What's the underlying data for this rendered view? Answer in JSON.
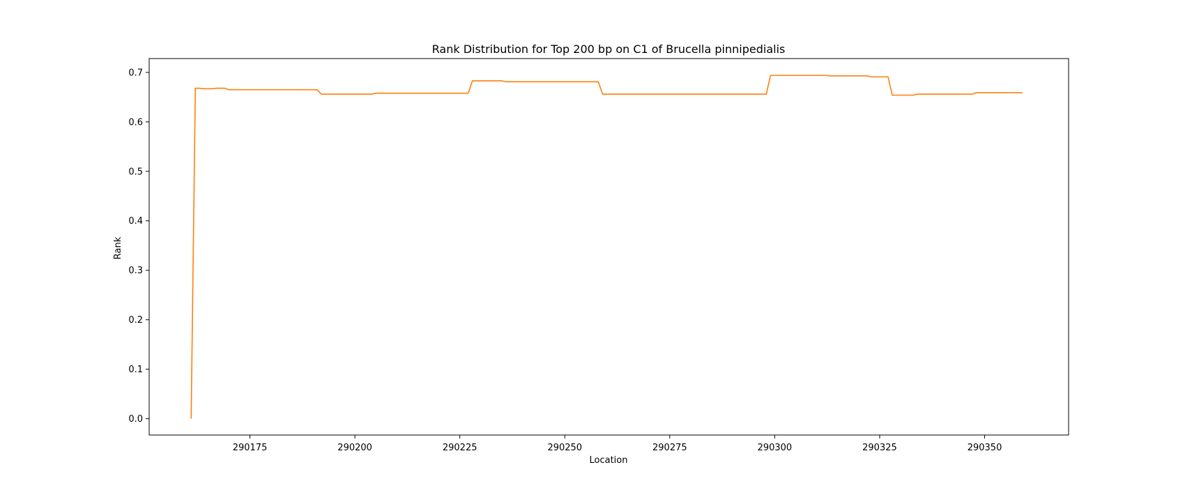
{
  "chart_data": {
    "type": "line",
    "title": "Rank Distribution for Top 200 bp on C1 of Brucella pinnipedialis",
    "xlabel": "Location",
    "ylabel": "Rank",
    "xlim": [
      290151,
      290370
    ],
    "ylim": [
      -0.033,
      0.728
    ],
    "x_ticks": [
      290175,
      290200,
      290225,
      290250,
      290275,
      290300,
      290325,
      290350
    ],
    "y_ticks": [
      0.0,
      0.1,
      0.2,
      0.3,
      0.4,
      0.5,
      0.6,
      0.7
    ],
    "y_tick_labels": [
      "0.0",
      "0.1",
      "0.2",
      "0.3",
      "0.4",
      "0.5",
      "0.6",
      "0.7"
    ],
    "grid": false,
    "series": [
      {
        "color": "#ff7f0e",
        "x": [
          290161,
          290162,
          290163,
          290164,
          290166,
          290167,
          290169,
          290170,
          290180,
          290191,
          290192,
          290200,
          290204,
          290205,
          290220,
          290227,
          290228,
          290235,
          290236,
          290245,
          290258,
          290259,
          290275,
          290298,
          290299,
          290312,
          290313,
          290322,
          290323,
          290327,
          290328,
          290333,
          290334,
          290340,
          290347,
          290348,
          290359
        ],
        "y": [
          0.0,
          0.668,
          0.668,
          0.667,
          0.667,
          0.668,
          0.668,
          0.665,
          0.665,
          0.665,
          0.656,
          0.656,
          0.656,
          0.658,
          0.658,
          0.658,
          0.683,
          0.683,
          0.681,
          0.681,
          0.681,
          0.656,
          0.656,
          0.656,
          0.694,
          0.694,
          0.693,
          0.693,
          0.691,
          0.691,
          0.654,
          0.654,
          0.656,
          0.656,
          0.656,
          0.659,
          0.659
        ]
      }
    ]
  }
}
